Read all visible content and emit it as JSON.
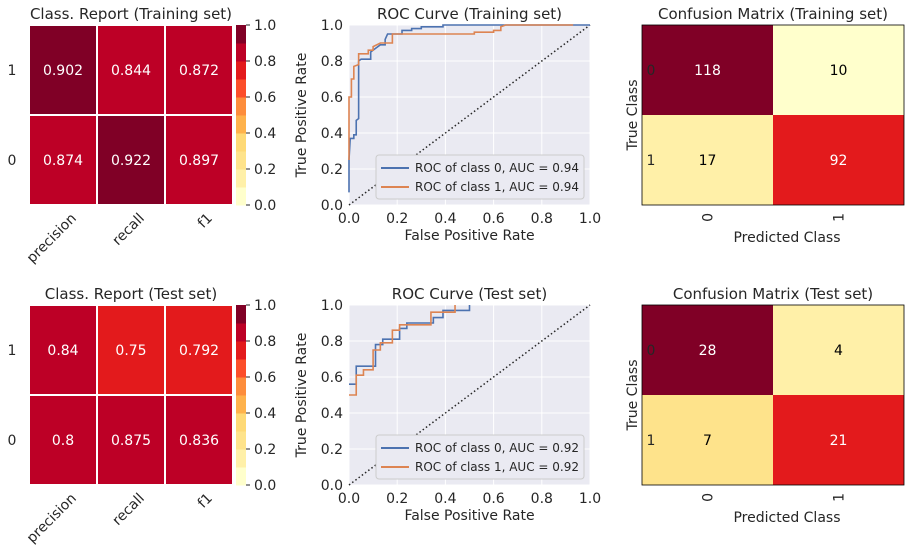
{
  "chart_data": [
    {
      "type": "heatmap",
      "title": "Class. Report (Training set)",
      "rows": [
        "1",
        "0"
      ],
      "columns": [
        "precision",
        "recall",
        "f1"
      ],
      "values": [
        [
          0.902,
          0.844,
          0.872
        ],
        [
          0.874,
          0.922,
          0.897
        ]
      ],
      "colorbar": {
        "range": [
          0,
          1
        ],
        "ticks": [
          "0.0",
          "0.2",
          "0.4",
          "0.6",
          "0.8",
          "1.0"
        ],
        "bins": 10
      }
    },
    {
      "type": "line",
      "title": "ROC Curve (Training set)",
      "xlabel": "False Positive Rate",
      "ylabel": "True Positive Rate",
      "xlim": [
        0,
        1
      ],
      "ylim": [
        0,
        1
      ],
      "xticks": [
        "0.0",
        "0.2",
        "0.4",
        "0.6",
        "0.8",
        "1.0"
      ],
      "yticks": [
        "0.0",
        "0.2",
        "0.4",
        "0.6",
        "0.8",
        "1.0"
      ],
      "grid": true,
      "legend": "bottom-right",
      "series": [
        {
          "name": "ROC of class 0, AUC = 0.94",
          "color": "#4c72b0",
          "x": [
            0,
            0,
            0.005,
            0.02,
            0.02,
            0.03,
            0.03,
            0.04,
            0.04,
            0.05,
            0.09,
            0.09,
            0.11,
            0.13,
            0.15,
            0.15,
            0.16,
            0.22,
            0.22,
            0.26,
            0.26,
            0.3,
            0.3,
            0.39,
            0.39,
            1
          ],
          "y": [
            0.07,
            0.25,
            0.37,
            0.37,
            0.39,
            0.39,
            0.47,
            0.48,
            0.8,
            0.81,
            0.81,
            0.85,
            0.87,
            0.89,
            0.89,
            0.92,
            0.95,
            0.95,
            0.97,
            0.97,
            0.98,
            0.98,
            0.99,
            0.99,
            1,
            1
          ]
        },
        {
          "name": "ROC of class 1, AUC = 0.94",
          "color": "#dd8452",
          "x": [
            0,
            0,
            0.01,
            0.01,
            0.02,
            0.02,
            0.04,
            0.04,
            0.08,
            0.08,
            0.1,
            0.1,
            0.13,
            0.18,
            0.18,
            0.52,
            0.52,
            0.6,
            0.6,
            0.63,
            0.63,
            0.65,
            0.93
          ],
          "y": [
            0.25,
            0.6,
            0.6,
            0.7,
            0.7,
            0.77,
            0.78,
            0.84,
            0.84,
            0.86,
            0.86,
            0.88,
            0.9,
            0.9,
            0.95,
            0.95,
            0.96,
            0.96,
            0.97,
            0.97,
            0.99,
            1,
            1
          ]
        }
      ]
    },
    {
      "type": "heatmap",
      "title": "Confusion Matrix (Training set)",
      "xlabel": "Predicted Class",
      "ylabel": "True Class",
      "rows": [
        "0",
        "1"
      ],
      "columns": [
        "0",
        "1"
      ],
      "values": [
        [
          118,
          10
        ],
        [
          17,
          92
        ]
      ]
    },
    {
      "type": "heatmap",
      "title": "Class. Report (Test set)",
      "rows": [
        "1",
        "0"
      ],
      "columns": [
        "precision",
        "recall",
        "f1"
      ],
      "values": [
        [
          0.84,
          0.75,
          0.792
        ],
        [
          0.8,
          0.875,
          0.836
        ]
      ],
      "colorbar": {
        "range": [
          0,
          1
        ],
        "ticks": [
          "0.0",
          "0.2",
          "0.4",
          "0.6",
          "0.8",
          "1.0"
        ],
        "bins": 10
      }
    },
    {
      "type": "line",
      "title": "ROC Curve (Test set)",
      "xlabel": "False Positive Rate",
      "ylabel": "True Positive Rate",
      "xlim": [
        0,
        1
      ],
      "ylim": [
        0,
        1
      ],
      "xticks": [
        "0.0",
        "0.2",
        "0.4",
        "0.6",
        "0.8",
        "1.0"
      ],
      "yticks": [
        "0.0",
        "0.2",
        "0.4",
        "0.6",
        "0.8",
        "1.0"
      ],
      "grid": true,
      "legend": "bottom-right",
      "series": [
        {
          "name": "ROC of class 0, AUC = 0.92",
          "color": "#4c72b0",
          "x": [
            0,
            0.03,
            0.03,
            0.11,
            0.11,
            0.14,
            0.14,
            0.21,
            0.21,
            0.24,
            0.24,
            0.35,
            0.35,
            0.39,
            0.39,
            0.5,
            0.5
          ],
          "y": [
            0.56,
            0.56,
            0.66,
            0.66,
            0.78,
            0.78,
            0.81,
            0.81,
            0.87,
            0.87,
            0.9,
            0.9,
            0.93,
            0.93,
            0.97,
            0.97,
            1
          ]
        },
        {
          "name": "ROC of class 1, AUC = 0.92",
          "color": "#dd8452",
          "x": [
            0,
            0.03,
            0.03,
            0.06,
            0.06,
            0.1,
            0.1,
            0.13,
            0.13,
            0.18,
            0.18,
            0.21,
            0.21,
            0.34,
            0.34,
            0.44,
            0.44
          ],
          "y": [
            0.5,
            0.5,
            0.61,
            0.61,
            0.64,
            0.64,
            0.75,
            0.75,
            0.79,
            0.79,
            0.86,
            0.86,
            0.89,
            0.89,
            0.96,
            0.96,
            1
          ]
        }
      ]
    },
    {
      "type": "heatmap",
      "title": "Confusion Matrix (Test set)",
      "xlabel": "Predicted Class",
      "ylabel": "True Class",
      "rows": [
        "0",
        "1"
      ],
      "columns": [
        "0",
        "1"
      ],
      "values": [
        [
          28,
          4
        ],
        [
          7,
          21
        ]
      ]
    }
  ],
  "colors": {
    "colormap": [
      "#ffffcc",
      "#fff0a8",
      "#fee38b",
      "#fed976",
      "#feb24c",
      "#fd8d3c",
      "#fc4e2a",
      "#e31a1c",
      "#bd0026",
      "#800026"
    ],
    "roc_bg": "#eaeaf2"
  }
}
